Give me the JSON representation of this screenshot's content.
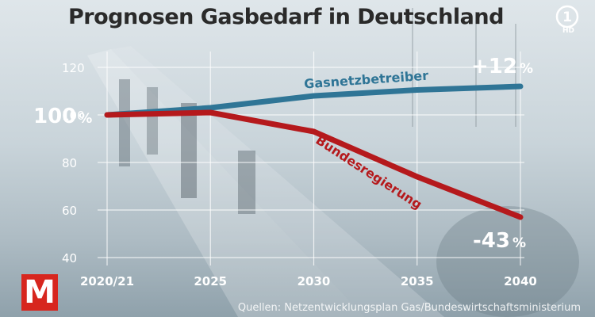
{
  "chart_data": {
    "type": "line",
    "title": "Prognosen Gasbedarf in Deutschland",
    "x": [
      "2020/21",
      "2025",
      "2030",
      "2035",
      "2040"
    ],
    "ylim": [
      40,
      120
    ],
    "yticks": [
      40,
      60,
      80,
      100,
      120
    ],
    "grid": true,
    "series": [
      {
        "name": "Gasnetzbetreiber",
        "values": [
          100,
          103,
          108,
          110.5,
          112
        ],
        "color": "#2f7596"
      },
      {
        "name": "Bundesregierung",
        "values": [
          100,
          101,
          93,
          74,
          57
        ],
        "color": "#b5191c"
      }
    ],
    "annotations": {
      "start": "100",
      "start_unit": "%",
      "end_high": "+12",
      "end_high_unit": "%",
      "end_low": "-43",
      "end_low_unit": "%"
    }
  },
  "source": "Quellen: Netzentwicklungsplan Gas/Bundeswirtschaftsministerium",
  "logos": {
    "left_letter": "M",
    "right_channel": "HD"
  }
}
